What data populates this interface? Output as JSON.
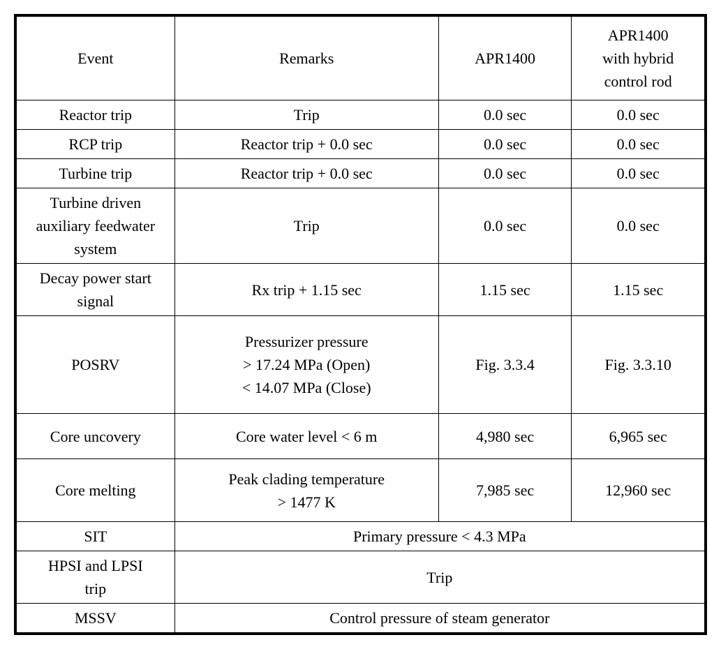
{
  "table": {
    "header": {
      "event": "Event",
      "remarks": "Remarks",
      "apr1400": "APR1400",
      "apr1400_hybrid": "APR1400\nwith hybrid\ncontrol rod"
    },
    "rows": [
      {
        "event": "Reactor trip",
        "remarks": "Trip",
        "apr1400": "0.0 sec",
        "apr1400_hybrid": "0.0 sec",
        "row_class": "short-row"
      },
      {
        "event": "RCP trip",
        "remarks": "Reactor trip + 0.0 sec",
        "apr1400": "0.0 sec",
        "apr1400_hybrid": "0.0 sec",
        "row_class": "short-row"
      },
      {
        "event": "Turbine trip",
        "remarks": "Reactor trip + 0.0 sec",
        "apr1400": "0.0 sec",
        "apr1400_hybrid": "0.0 sec",
        "row_class": "short-row"
      },
      {
        "event": "Turbine driven\nauxiliary feedwater\nsystem",
        "remarks": "Trip",
        "apr1400": "0.0 sec",
        "apr1400_hybrid": "0.0 sec",
        "row_class": ""
      },
      {
        "event": "Decay power start\nsignal",
        "remarks": "Rx trip + 1.15 sec",
        "apr1400": "1.15 sec",
        "apr1400_hybrid": "1.15 sec",
        "row_class": ""
      },
      {
        "event": "POSRV",
        "remarks": "Pressurizer pressure\n> 17.24 MPa (Open)\n< 14.07 MPa (Close)",
        "apr1400": "Fig. 3.3.4",
        "apr1400_hybrid": "Fig. 3.3.10",
        "row_class": "tall-row"
      },
      {
        "event": "Core uncovery",
        "remarks": "Core water level < 6 m",
        "apr1400": "4,980 sec",
        "apr1400_hybrid": "6,965 sec",
        "row_class": "medium-row"
      },
      {
        "event": "Core melting",
        "remarks": "Peak clading temperature\n> 1477 K",
        "apr1400": "7,985 sec",
        "apr1400_hybrid": "12,960 sec",
        "row_class": "medium-tall-row"
      }
    ],
    "spanned_rows": [
      {
        "event": "SIT",
        "merged": "Primary pressure < 4.3 MPa",
        "row_class": "short-row"
      },
      {
        "event": "HPSI and LPSI\ntrip",
        "merged": "Trip",
        "row_class": ""
      },
      {
        "event": "MSSV",
        "merged": "Control pressure of steam generator",
        "row_class": "short-row"
      }
    ]
  },
  "styles": {
    "border_color": "#000000",
    "background_color": "#ffffff",
    "text_color": "#000000",
    "font_family": "Times New Roman",
    "base_font_size": 22
  }
}
